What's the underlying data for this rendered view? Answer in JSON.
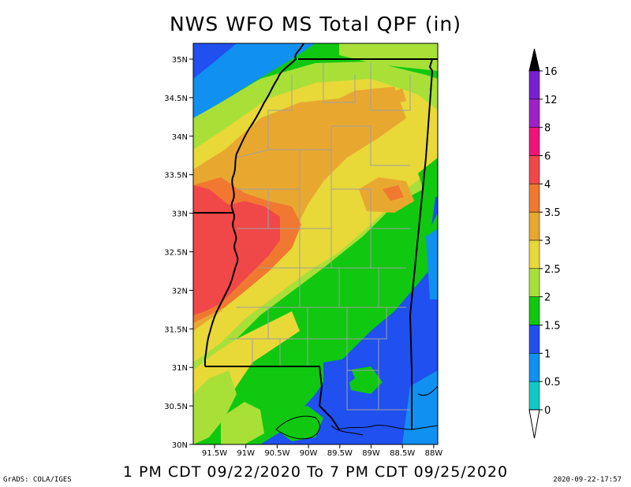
{
  "title": "NWS WFO MS Total QPF (in)",
  "subtitle": "1 PM CDT 09/22/2020 To 7 PM CDT 09/25/2020",
  "credit": "GrADS: COLA/IGES",
  "timestamp": "2020-09-22-17:57",
  "map": {
    "lat_labels": [
      "35N",
      "34.5N",
      "34N",
      "33.5N",
      "33N",
      "32.5N",
      "32N",
      "31.5N",
      "31N",
      "30.5N",
      "30N"
    ],
    "lon_labels": [
      "91.5W",
      "91W",
      "90.5W",
      "90W",
      "89.5W",
      "89W",
      "88.5W",
      "88W"
    ]
  },
  "colorbar": {
    "labels": [
      "16",
      "12",
      "8",
      "6",
      "4",
      "3.5",
      "3",
      "2.5",
      "2",
      "1.5",
      "1",
      "0.5",
      "0"
    ],
    "colors": [
      "#7a1fd0",
      "#a020c8",
      "#f0137a",
      "#f04848",
      "#f07830",
      "#e8a830",
      "#e8d838",
      "#a8e038",
      "#10c810",
      "#2050f0",
      "#1090f0",
      "#10c8c8"
    ]
  }
}
